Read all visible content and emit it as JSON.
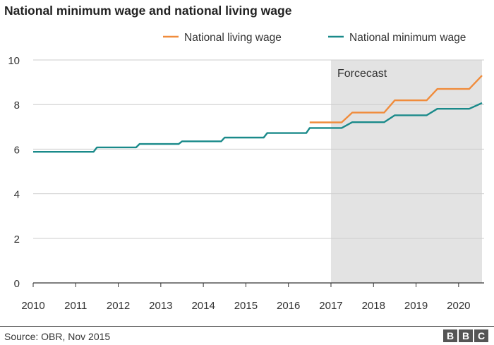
{
  "title": "National minimum wage and national living wage",
  "footer": {
    "source": "Source: OBR, Nov 2015",
    "logo_letters": [
      "B",
      "B",
      "C"
    ]
  },
  "chart_data": {
    "type": "line",
    "title": "National minimum wage and national living wage",
    "xlabel": "",
    "ylabel": "",
    "xlim": [
      2009.95,
      2020.55
    ],
    "ylim": [
      0,
      10
    ],
    "xticks": [
      "2010",
      "2011",
      "2012",
      "2013",
      "2014",
      "2015",
      "2016",
      "2017",
      "2018",
      "2019",
      "2020"
    ],
    "yticks": [
      "0",
      "2",
      "4",
      "6",
      "8",
      "10"
    ],
    "grid": "horizontal",
    "legend_position": "top-right",
    "shaded_region": {
      "label": "Forcecast",
      "x_start": 2017,
      "x_end": 2020.55,
      "color": "#e3e3e3"
    },
    "series": [
      {
        "name": "National living wage",
        "color": "#f08c3c",
        "points": [
          [
            2016.5,
            7.2
          ],
          [
            2017.25,
            7.2
          ],
          [
            2017.5,
            7.64
          ],
          [
            2018.25,
            7.64
          ],
          [
            2018.5,
            8.19
          ],
          [
            2019.25,
            8.19
          ],
          [
            2019.5,
            8.7
          ],
          [
            2020.25,
            8.7
          ],
          [
            2020.55,
            9.3
          ]
        ]
      },
      {
        "name": "National minimum wage",
        "color": "#1a8a8a",
        "points": [
          [
            2010.0,
            5.88
          ],
          [
            2011.42,
            5.88
          ],
          [
            2011.5,
            6.08
          ],
          [
            2012.42,
            6.08
          ],
          [
            2012.5,
            6.23
          ],
          [
            2013.42,
            6.23
          ],
          [
            2013.5,
            6.35
          ],
          [
            2014.42,
            6.35
          ],
          [
            2014.5,
            6.52
          ],
          [
            2015.42,
            6.52
          ],
          [
            2015.5,
            6.72
          ],
          [
            2016.42,
            6.72
          ],
          [
            2016.5,
            6.95
          ],
          [
            2017.25,
            6.95
          ],
          [
            2017.5,
            7.21
          ],
          [
            2018.25,
            7.21
          ],
          [
            2018.5,
            7.52
          ],
          [
            2019.25,
            7.52
          ],
          [
            2019.5,
            7.81
          ],
          [
            2020.25,
            7.81
          ],
          [
            2020.55,
            8.07
          ]
        ]
      }
    ]
  }
}
